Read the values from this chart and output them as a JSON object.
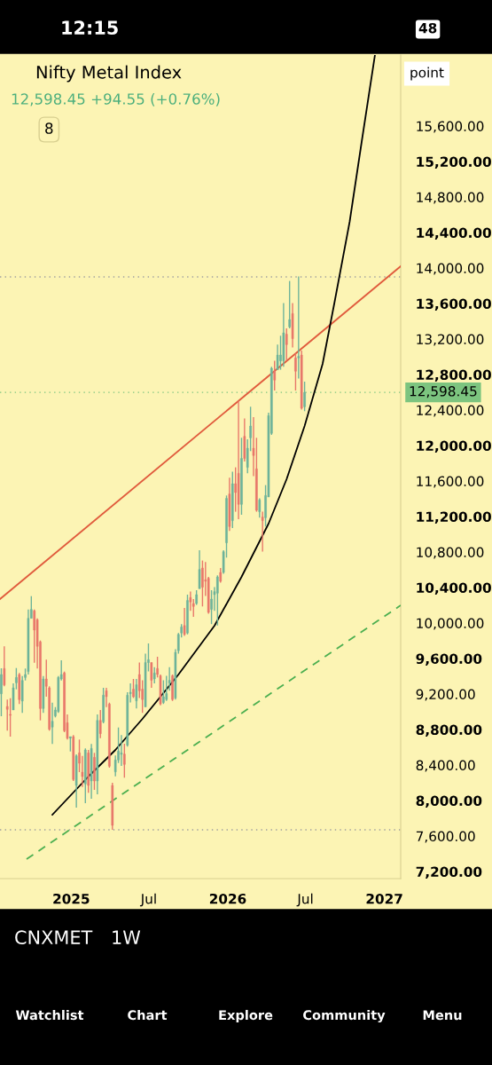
{
  "chart_data": {
    "type": "candlestick",
    "title": "Nifty Metal Index",
    "subtitle": "12,598.45 +94.55 (+0.76%)",
    "annotations": [
      "8",
      "point",
      "12:15",
      "48",
      "CNXMET",
      "1W",
      "Watchlist",
      "Chart",
      "Explore",
      "Community",
      "Menu"
    ],
    "x": [
      "2024-07-22",
      "2024-07-29",
      "2024-08-05",
      "2024-08-12",
      "2024-08-19",
      "2024-08-26",
      "2024-09-02",
      "2024-09-09",
      "2024-09-16",
      "2024-09-23",
      "2024-09-30",
      "2024-10-07",
      "2024-10-14",
      "2024-10-21",
      "2024-10-28",
      "2024-11-04",
      "2024-11-11",
      "2024-11-18",
      "2024-11-25",
      "2024-12-02",
      "2024-12-09",
      "2024-12-16",
      "2024-12-23",
      "2024-12-30",
      "2025-01-06",
      "2025-01-13",
      "2025-01-20",
      "2025-01-27",
      "2025-02-03",
      "2025-02-10",
      "2025-02-17",
      "2025-02-24",
      "2025-03-03",
      "2025-03-10",
      "2025-03-17",
      "2025-03-24",
      "2025-03-31",
      "2025-04-07",
      "2025-04-14",
      "2025-04-21",
      "2025-04-28",
      "2025-05-05",
      "2025-05-12",
      "2025-05-19",
      "2025-05-26",
      "2025-06-02",
      "2025-06-09",
      "2025-06-16",
      "2025-06-23",
      "2025-06-30",
      "2025-07-07",
      "2025-07-14",
      "2025-07-21",
      "2025-07-28",
      "2025-08-04",
      "2025-08-11",
      "2025-08-18",
      "2025-08-25",
      "2025-09-01",
      "2025-09-08",
      "2025-09-15",
      "2025-09-22",
      "2025-09-29",
      "2025-10-06",
      "2025-10-13",
      "2025-10-20",
      "2025-10-27",
      "2025-11-03",
      "2025-11-10",
      "2025-11-17",
      "2025-11-24",
      "2025-12-01",
      "2025-12-08",
      "2025-12-15",
      "2025-12-22",
      "2025-12-29",
      "2026-01-05",
      "2026-01-12",
      "2026-01-19",
      "2026-01-26",
      "2026-02-02",
      "2026-02-09",
      "2026-02-16",
      "2026-02-23",
      "2026-03-02",
      "2026-03-09",
      "2026-03-16",
      "2026-03-23",
      "2026-03-30",
      "2026-04-06",
      "2026-04-13",
      "2026-04-20",
      "2026-04-27",
      "2026-05-04",
      "2026-05-11",
      "2026-05-18",
      "2026-05-25",
      "2026-06-01",
      "2026-06-08",
      "2026-06-15",
      "2026-06-22",
      "2026-06-29"
    ],
    "ohlc": [
      [
        9203,
        9490,
        8950,
        9420
      ],
      [
        9487,
        9737,
        9287,
        9303
      ],
      [
        9060,
        9137,
        8787,
        9027
      ],
      [
        8970,
        9153,
        8720,
        8960
      ],
      [
        9020,
        9320,
        9020,
        9270
      ],
      [
        9327,
        9493,
        9253,
        9387
      ],
      [
        9420,
        9437,
        9087,
        9137
      ],
      [
        9120,
        9403,
        8987,
        9353
      ],
      [
        9387,
        9487,
        9353,
        9420
      ],
      [
        9453,
        10153,
        9420,
        10053
      ],
      [
        10053,
        10303,
        10053,
        10153
      ],
      [
        10137,
        10153,
        9553,
        9920
      ],
      [
        10037,
        10053,
        9487,
        9737
      ],
      [
        9787,
        9803,
        8903,
        9037
      ],
      [
        9037,
        9403,
        8987,
        9370
      ],
      [
        9370,
        9587,
        9170,
        9287
      ],
      [
        9270,
        9287,
        8787,
        8803
      ],
      [
        8827,
        9103,
        8637,
        8893
      ],
      [
        8953,
        9053,
        8937,
        9020
      ],
      [
        9003,
        9403,
        8987,
        9387
      ],
      [
        9370,
        9580,
        9353,
        9420
      ],
      [
        9437,
        9453,
        8770,
        8787
      ],
      [
        8877,
        8970,
        8687,
        8703
      ],
      [
        8703,
        8720,
        8553,
        8720
      ],
      [
        8720,
        8737,
        8220,
        8237
      ],
      [
        8170,
        8520,
        7920,
        8503
      ],
      [
        8537,
        8687,
        8320,
        8420
      ],
      [
        8320,
        8503,
        8153,
        8270
      ],
      [
        8187,
        8587,
        7970,
        8570
      ],
      [
        8537,
        8570,
        8087,
        8170
      ],
      [
        8220,
        8637,
        8020,
        8587
      ],
      [
        8487,
        8537,
        8120,
        8220
      ],
      [
        8220,
        8970,
        8070,
        8903
      ],
      [
        8903,
        9020,
        8703,
        8753
      ],
      [
        8887,
        9270,
        8870,
        9187
      ],
      [
        9237,
        9270,
        9053,
        9170
      ],
      [
        9087,
        9103,
        8370,
        8387
      ],
      [
        8170,
        8200,
        7670,
        7720
      ],
      [
        8323,
        8507,
        8273,
        8457
      ],
      [
        8457,
        8823,
        8423,
        8557
      ],
      [
        8520,
        8737,
        8390,
        8537
      ],
      [
        8523,
        8640,
        8257,
        8407
      ],
      [
        8623,
        9220,
        8607,
        9187
      ],
      [
        9203,
        9320,
        9105,
        9220
      ],
      [
        9255,
        9370,
        9155,
        9170
      ],
      [
        9123,
        9370,
        9038,
        9305
      ],
      [
        9420,
        9555,
        9155,
        9237
      ],
      [
        9255,
        9355,
        8988,
        9138
      ],
      [
        9055,
        9655,
        9055,
        9555
      ],
      [
        9555,
        9770,
        9455,
        9587
      ],
      [
        9555,
        9555,
        9270,
        9355
      ],
      [
        9370,
        9503,
        9320,
        9437
      ],
      [
        9487,
        9620,
        9387,
        9420
      ],
      [
        9405,
        9420,
        9072,
        9088
      ],
      [
        9105,
        9355,
        9088,
        9170
      ],
      [
        9138,
        9405,
        9122,
        9205
      ],
      [
        9322,
        9503,
        9238,
        9355
      ],
      [
        9405,
        9420,
        9122,
        9138
      ],
      [
        9155,
        9705,
        9138,
        9670
      ],
      [
        9688,
        9888,
        9655,
        9872
      ],
      [
        9888,
        9988,
        9838,
        9955
      ],
      [
        9972,
        10170,
        9855,
        9872
      ],
      [
        9888,
        10320,
        9872,
        10254
      ],
      [
        10287,
        10354,
        10137,
        10237
      ],
      [
        10220,
        10270,
        10070,
        10187
      ],
      [
        10220,
        10370,
        10204,
        10320
      ],
      [
        10387,
        10820,
        10387,
        10604
      ],
      [
        10620,
        10704,
        10187,
        10404
      ],
      [
        10487,
        10687,
        10304,
        10470
      ],
      [
        10504,
        10520,
        10104,
        10120
      ],
      [
        10154,
        10370,
        9988,
        10270
      ],
      [
        10320,
        10404,
        10137,
        10354
      ],
      [
        10337,
        10537,
        9972,
        10520
      ],
      [
        10570,
        10620,
        10454,
        10470
      ],
      [
        10570,
        10820,
        10554,
        10804
      ],
      [
        10904,
        11437,
        10737,
        11404
      ],
      [
        11454,
        11637,
        11037,
        11087
      ],
      [
        11154,
        11704,
        11070,
        11570
      ],
      [
        11570,
        11754,
        11254,
        11470
      ],
      [
        11687,
        12504,
        11170,
        11337
      ],
      [
        11337,
        12087,
        11220,
        11854
      ],
      [
        12104,
        12304,
        11820,
        11854
      ],
      [
        11754,
        12070,
        11687,
        11970
      ],
      [
        12087,
        12437,
        11937,
        12220
      ],
      [
        11970,
        12320,
        11654,
        11887
      ],
      [
        11737,
        12087,
        11254,
        11270
      ],
      [
        11254,
        11404,
        11187,
        11387
      ],
      [
        11194,
        11254,
        10804,
        11154
      ],
      [
        11187,
        11554,
        11087,
        11437
      ],
      [
        11420,
        12370,
        11420,
        12337
      ],
      [
        12137,
        12887,
        12120,
        12870
      ],
      [
        12837,
        12954,
        12620,
        12737
      ],
      [
        12854,
        13137,
        12854,
        13020
      ],
      [
        12954,
        13237,
        12854,
        13020
      ],
      [
        12954,
        13604,
        12887,
        13270
      ],
      [
        13254,
        13320,
        12954,
        13137
      ],
      [
        13337,
        13854,
        13320,
        13420
      ],
      [
        13487,
        13604,
        13104,
        13204
      ],
      [
        12987,
        13037,
        12620,
        12837
      ],
      [
        12987,
        13904,
        12754,
        13004
      ],
      [
        13020,
        13070,
        12404,
        12420
      ],
      [
        12437,
        12720,
        12387,
        12598.45
      ]
    ],
    "colors": [
      "#6db39a",
      "#e8776a",
      "#e8776a",
      "#e8776a",
      "#6db39a",
      "#6db39a",
      "#e8776a",
      "#6db39a",
      "#6db39a",
      "#6db39a",
      "#6db39a",
      "#e8776a",
      "#e8776a",
      "#e8776a",
      "#6db39a",
      "#e8776a",
      "#e8776a",
      "#6db39a",
      "#6db39a",
      "#6db39a",
      "#6db39a",
      "#e8776a",
      "#e8776a",
      "#6db39a",
      "#e8776a",
      "#6db39a",
      "#e8776a",
      "#e8776a",
      "#6db39a",
      "#e8776a",
      "#6db39a",
      "#e8776a",
      "#6db39a",
      "#e8776a",
      "#6db39a",
      "#e8776a",
      "#e8776a",
      "#e8776a",
      "#6db39a",
      "#6db39a",
      "#6db39a",
      "#e8776a",
      "#6db39a",
      "#6db39a",
      "#e8776a",
      "#6db39a",
      "#e8776a",
      "#e8776a",
      "#6db39a",
      "#6db39a",
      "#e8776a",
      "#6db39a",
      "#e8776a",
      "#e8776a",
      "#6db39a",
      "#6db39a",
      "#6db39a",
      "#e8776a",
      "#6db39a",
      "#6db39a",
      "#6db39a",
      "#e8776a",
      "#6db39a",
      "#e8776a",
      "#e8776a",
      "#6db39a",
      "#6db39a",
      "#e8776a",
      "#e8776a",
      "#e8776a",
      "#6db39a",
      "#6db39a",
      "#6db39a",
      "#e8776a",
      "#6db39a",
      "#6db39a",
      "#e8776a",
      "#6db39a",
      "#e8776a",
      "#e8776a",
      "#6db39a",
      "#e8776a",
      "#6db39a",
      "#6db39a",
      "#e8776a",
      "#e8776a",
      "#6db39a",
      "#e8776a",
      "#6db39a",
      "#6db39a",
      "#6db39a",
      "#e8776a",
      "#6db39a",
      "#6db39a",
      "#6db39a",
      "#e8776a",
      "#6db39a",
      "#e8776a",
      "#e8776a",
      "#6db39a",
      "#e8776a",
      "#6db39a"
    ],
    "series": [
      {
        "type": "line",
        "color": "#e05a3c",
        "line_style": "solid",
        "x": [
          "2024-07-19",
          "2027-02-08"
        ],
        "values": [
          10270,
          14020
        ]
      },
      {
        "type": "line",
        "color": "#000000",
        "line_style": "solid",
        "x": [
          "2024-11-18",
          "2025-02-10",
          "2025-04-14",
          "2025-06-16",
          "2025-09-08",
          "2025-12-01",
          "2026-02-02",
          "2026-04-06",
          "2026-05-18",
          "2026-06-29",
          "2026-08-10",
          "2026-09-07",
          "2026-10-12",
          "2026-11-09",
          "2026-12-10"
        ],
        "values": [
          7840,
          8270,
          8570,
          8920,
          9420,
          9970,
          10520,
          11120,
          11620,
          12220,
          12920,
          13620,
          14520,
          15420,
          16400
        ]
      },
      {
        "type": "line",
        "color": "#4caf50",
        "line_style": "dashed",
        "x": [
          "2024-09-19",
          "2027-02-08"
        ],
        "values": [
          7340,
          10200
        ]
      }
    ],
    "ref_lines": [
      {
        "axis": "y",
        "value": 13900,
        "color": "#9e9e9e",
        "line_style": "dotted"
      },
      {
        "axis": "y",
        "value": 12598.45,
        "label": "12,598.45",
        "color": "#7cc47f",
        "line_style": "dotted"
      },
      {
        "axis": "y",
        "value": 7670,
        "color": "#9e9e9e",
        "line_style": "dotted"
      }
    ],
    "xlim": [
      "2024-07-19",
      "2027-02-08"
    ],
    "xticks": [
      {
        "value": "2025-01-01",
        "label": "2025"
      },
      {
        "value": "2025-07-01",
        "label": "Jul"
      },
      {
        "value": "2026-01-01",
        "label": "2026"
      },
      {
        "value": "2026-07-01",
        "label": "Jul"
      },
      {
        "value": "2027-01-01",
        "label": "2027"
      }
    ],
    "ylim": [
      7120,
      16400
    ],
    "yticks": [
      {
        "value": 7200,
        "label": "7,200.00"
      },
      {
        "value": 7600,
        "label": "7,600.00"
      },
      {
        "value": 8000,
        "label": "8,000.00"
      },
      {
        "value": 8400,
        "label": "8,400.00"
      },
      {
        "value": 8800,
        "label": "8,800.00"
      },
      {
        "value": 9200,
        "label": "9,200.00"
      },
      {
        "value": 9600,
        "label": "9,600.00"
      },
      {
        "value": 10000,
        "label": "10,000.00"
      },
      {
        "value": 10400,
        "label": "10,400.00"
      },
      {
        "value": 10800,
        "label": "10,800.00"
      },
      {
        "value": 11200,
        "label": "11,200.00"
      },
      {
        "value": 11600,
        "label": "11,600.00"
      },
      {
        "value": 12000,
        "label": "12,000.00"
      },
      {
        "value": 12400,
        "label": "12,400.00"
      },
      {
        "value": 12800,
        "label": "12,800.00"
      },
      {
        "value": 13200,
        "label": "13,200.00"
      },
      {
        "value": 13600,
        "label": "13,600.00"
      },
      {
        "value": 14000,
        "label": "14,000.00"
      },
      {
        "value": 14400,
        "label": "14,400.00"
      },
      {
        "value": 14800,
        "label": "14,800.00"
      },
      {
        "value": 15200,
        "label": "15,200.00"
      },
      {
        "value": 15600,
        "label": "15,600.00"
      }
    ]
  }
}
